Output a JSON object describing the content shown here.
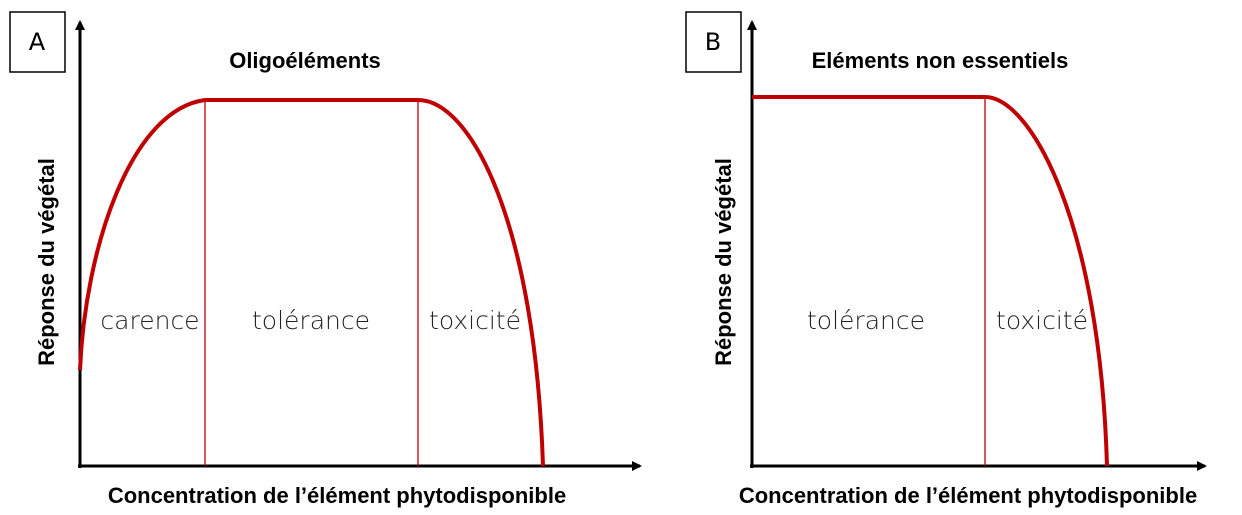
{
  "panels": [
    {
      "label": "A",
      "title": "Oligoéléments",
      "y_label": "Réponse du végétal",
      "x_label": "Concentration de l’élément phytodisponible",
      "zones": [
        "carence",
        "tolérance",
        "toxicité"
      ]
    },
    {
      "label": "B",
      "title": "Eléments non essentiels",
      "y_label": "Réponse du végétal",
      "x_label": "Concentration de l’élément phytodisponible",
      "zones": [
        "tolérance",
        "toxicité"
      ]
    }
  ]
}
